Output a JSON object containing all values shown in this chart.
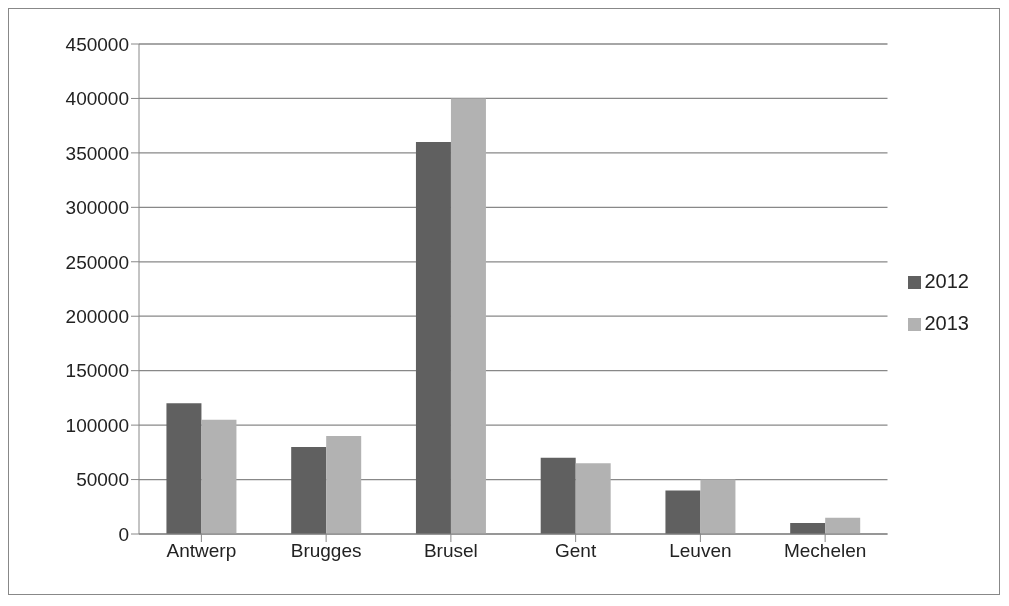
{
  "chart_data": {
    "type": "bar",
    "categories": [
      "Antwerp",
      "Brugges",
      "Brusel",
      "Gent",
      "Leuven",
      "Mechelen"
    ],
    "series": [
      {
        "name": "2012",
        "color": "#606060",
        "values": [
          120000,
          80000,
          360000,
          70000,
          40000,
          10000
        ]
      },
      {
        "name": "2013",
        "color": "#b2b2b2",
        "values": [
          105000,
          90000,
          400000,
          65000,
          50000,
          15000
        ]
      }
    ],
    "ylim": [
      0,
      450000
    ],
    "yticks": [
      0,
      50000,
      100000,
      150000,
      200000,
      250000,
      300000,
      350000,
      400000,
      450000
    ],
    "grid": "y",
    "legend": "right"
  }
}
